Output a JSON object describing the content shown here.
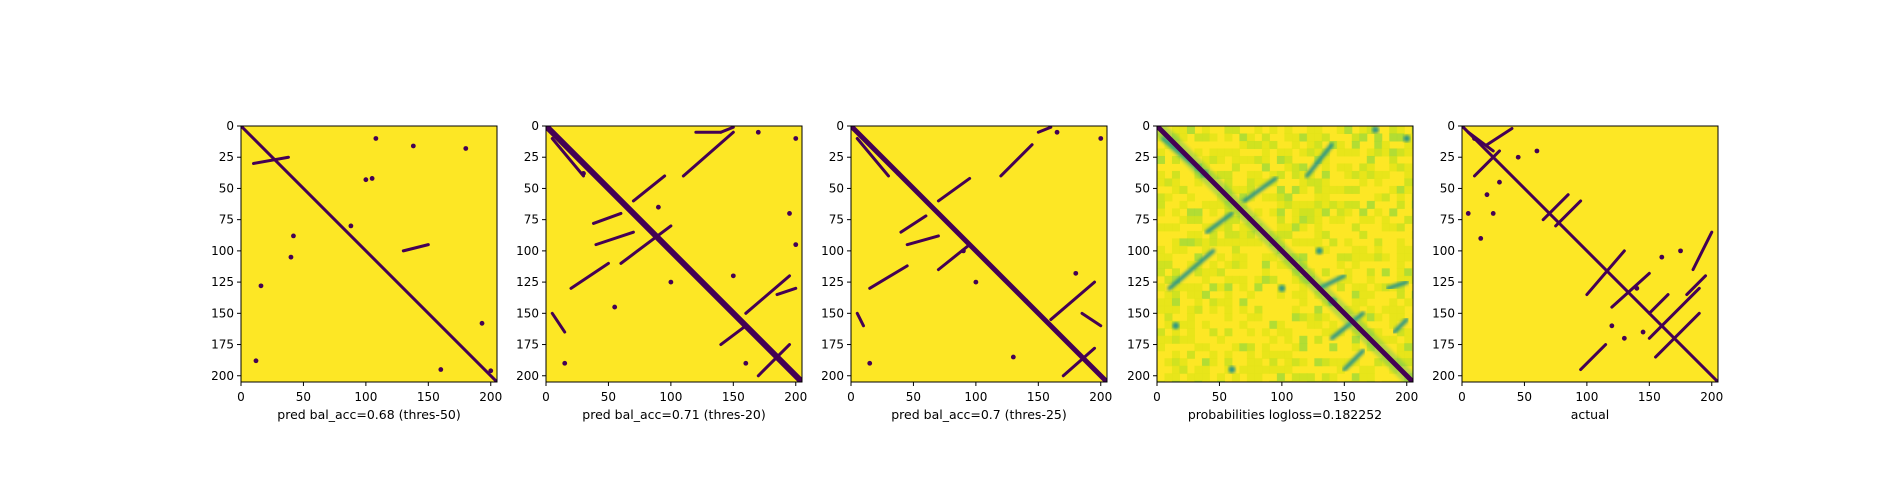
{
  "colors": {
    "background": "#fde725",
    "foreground": "#440154",
    "mid_colors": [
      "#35b779",
      "#21918c",
      "#7ad151",
      "#b5de2b"
    ]
  },
  "chart_data": [
    {
      "type": "heatmap",
      "xlabel": "pred bal_acc=0.68 (thres-50)",
      "xlim": [
        0,
        205
      ],
      "ylim": [
        205,
        0
      ],
      "x_ticks": [
        0,
        50,
        100,
        150,
        200
      ],
      "y_ticks": [
        0,
        25,
        50,
        75,
        100,
        125,
        150,
        175,
        200
      ],
      "features": {
        "diagonal": true,
        "diagonal_width": 3,
        "blobs": [
          [
            108,
            10
          ],
          [
            138,
            16
          ],
          [
            180,
            18
          ],
          [
            100,
            43
          ],
          [
            105,
            42
          ],
          [
            88,
            80
          ],
          [
            42,
            88
          ],
          [
            40,
            105
          ],
          [
            16,
            128
          ],
          [
            12,
            188
          ],
          [
            193,
            158
          ],
          [
            160,
            195
          ],
          [
            200,
            196
          ]
        ],
        "streaks": [
          [
            10,
            30,
            38,
            25
          ],
          [
            130,
            100,
            150,
            95
          ]
        ],
        "probability_map": false
      }
    },
    {
      "type": "heatmap",
      "xlabel": "pred bal_acc=0.71 (thres-20)",
      "xlim": [
        0,
        205
      ],
      "ylim": [
        205,
        0
      ],
      "x_ticks": [
        0,
        50,
        100,
        150,
        200
      ],
      "y_ticks": [
        0,
        25,
        50,
        75,
        100,
        125,
        150,
        175,
        200
      ],
      "features": {
        "diagonal": true,
        "diagonal_width": 6,
        "streaks": [
          [
            5,
            10,
            30,
            40
          ],
          [
            70,
            60,
            95,
            40
          ],
          [
            110,
            40,
            150,
            5
          ],
          [
            38,
            78,
            60,
            70
          ],
          [
            40,
            95,
            70,
            85
          ],
          [
            60,
            110,
            100,
            80
          ],
          [
            20,
            130,
            50,
            110
          ],
          [
            140,
            5,
            150,
            1
          ],
          [
            120,
            5,
            140,
            5
          ],
          [
            160,
            150,
            195,
            120
          ],
          [
            170,
            200,
            195,
            175
          ],
          [
            140,
            175,
            160,
            160
          ],
          [
            185,
            135,
            200,
            130
          ],
          [
            5,
            150,
            15,
            165
          ]
        ],
        "blobs": [
          [
            30,
            38
          ],
          [
            140,
            140
          ],
          [
            170,
            5
          ],
          [
            200,
            10
          ],
          [
            150,
            120
          ],
          [
            100,
            125
          ],
          [
            15,
            190
          ],
          [
            160,
            190
          ],
          [
            195,
            70
          ],
          [
            200,
            95
          ],
          [
            90,
            65
          ],
          [
            55,
            145
          ]
        ],
        "probability_map": false
      }
    },
    {
      "type": "heatmap",
      "xlabel": "pred bal_acc=0.7 (thres-25)",
      "xlim": [
        0,
        205
      ],
      "ylim": [
        205,
        0
      ],
      "x_ticks": [
        0,
        50,
        100,
        150,
        200
      ],
      "y_ticks": [
        0,
        25,
        50,
        75,
        100,
        125,
        150,
        175,
        200
      ],
      "features": {
        "diagonal": true,
        "diagonal_width": 5,
        "streaks": [
          [
            5,
            10,
            30,
            40
          ],
          [
            70,
            60,
            95,
            42
          ],
          [
            120,
            40,
            145,
            15
          ],
          [
            40,
            85,
            60,
            72
          ],
          [
            45,
            95,
            70,
            88
          ],
          [
            70,
            115,
            95,
            95
          ],
          [
            15,
            130,
            45,
            112
          ],
          [
            150,
            5,
            160,
            1
          ],
          [
            160,
            155,
            195,
            125
          ],
          [
            170,
            200,
            195,
            178
          ],
          [
            185,
            150,
            200,
            160
          ],
          [
            5,
            150,
            10,
            160
          ]
        ],
        "blobs": [
          [
            38,
            38
          ],
          [
            140,
            140
          ],
          [
            200,
            10
          ],
          [
            100,
            125
          ],
          [
            15,
            190
          ],
          [
            130,
            185
          ],
          [
            165,
            5
          ],
          [
            90,
            100
          ],
          [
            180,
            118
          ]
        ],
        "probability_map": false
      }
    },
    {
      "type": "heatmap",
      "xlabel": "probabilities logloss=0.182252",
      "xlim": [
        0,
        205
      ],
      "ylim": [
        205,
        0
      ],
      "x_ticks": [
        0,
        50,
        100,
        150,
        200
      ],
      "y_ticks": [
        0,
        25,
        50,
        75,
        100,
        125,
        150,
        175,
        200
      ],
      "features": {
        "diagonal": true,
        "diagonal_width": 5,
        "streaks": [
          [
            5,
            10,
            40,
            40
          ],
          [
            70,
            60,
            95,
            42
          ],
          [
            120,
            40,
            140,
            15
          ],
          [
            40,
            85,
            60,
            70
          ],
          [
            10,
            130,
            45,
            100
          ],
          [
            140,
            170,
            165,
            150
          ],
          [
            150,
            195,
            165,
            180
          ],
          [
            190,
            165,
            200,
            155
          ],
          [
            185,
            130,
            200,
            125
          ],
          [
            130,
            130,
            150,
            120
          ]
        ],
        "blobs": [
          [
            38,
            38
          ],
          [
            140,
            140
          ],
          [
            175,
            3
          ],
          [
            100,
            130
          ],
          [
            15,
            160
          ],
          [
            200,
            10
          ],
          [
            60,
            195
          ],
          [
            130,
            100
          ]
        ],
        "probability_map": true
      }
    },
    {
      "type": "heatmap",
      "xlabel": "actual",
      "xlim": [
        0,
        205
      ],
      "ylim": [
        205,
        0
      ],
      "x_ticks": [
        0,
        50,
        100,
        150,
        200
      ],
      "y_ticks": [
        0,
        25,
        50,
        75,
        100,
        125,
        150,
        175,
        200
      ],
      "features": {
        "diagonal": true,
        "diagonal_width": 3,
        "streaks": [
          [
            5,
            5,
            25,
            20
          ],
          [
            20,
            15,
            40,
            2
          ],
          [
            10,
            40,
            30,
            20
          ],
          [
            75,
            80,
            95,
            60
          ],
          [
            65,
            75,
            85,
            55
          ],
          [
            95,
            195,
            115,
            175
          ],
          [
            100,
            135,
            130,
            100
          ],
          [
            120,
            145,
            150,
            118
          ],
          [
            150,
            170,
            190,
            130
          ],
          [
            155,
            185,
            190,
            150
          ],
          [
            185,
            115,
            200,
            85
          ],
          [
            180,
            135,
            195,
            120
          ],
          [
            150,
            150,
            165,
            135
          ]
        ],
        "blobs": [
          [
            10,
            10
          ],
          [
            30,
            45
          ],
          [
            20,
            55
          ],
          [
            5,
            70
          ],
          [
            25,
            70
          ],
          [
            45,
            25
          ],
          [
            60,
            20
          ],
          [
            15,
            90
          ],
          [
            120,
            160
          ],
          [
            160,
            105
          ],
          [
            175,
            100
          ],
          [
            140,
            130
          ],
          [
            145,
            165
          ],
          [
            130,
            170
          ]
        ],
        "probability_map": false
      }
    }
  ]
}
